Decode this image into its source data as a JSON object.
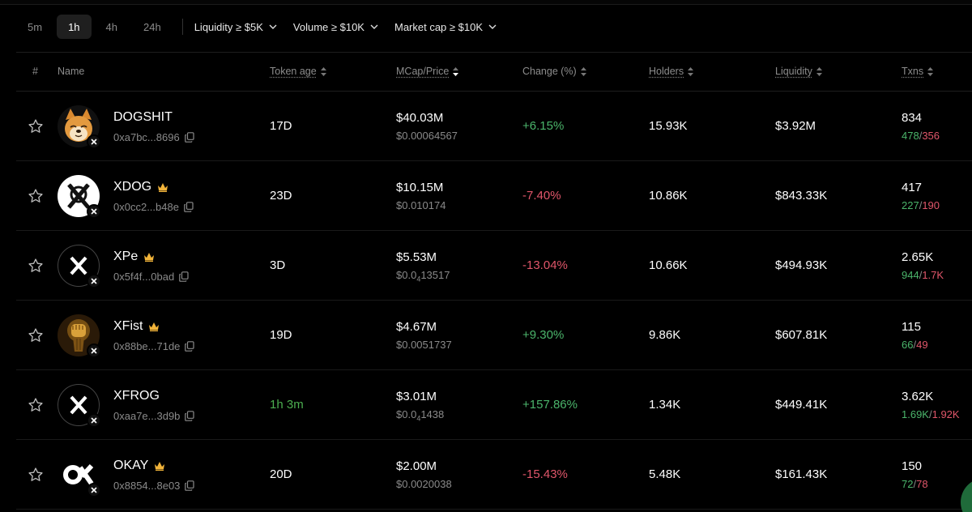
{
  "timeframes": [
    {
      "label": "5m",
      "active": false
    },
    {
      "label": "1h",
      "active": true
    },
    {
      "label": "4h",
      "active": false
    },
    {
      "label": "24h",
      "active": false
    }
  ],
  "filters": {
    "liquidity": "Liquidity ≥ $5K",
    "volume": "Volume ≥ $10K",
    "market_cap": "Market cap ≥ $10K"
  },
  "columns": {
    "index": "#",
    "name": "Name",
    "token_age": "Token age",
    "mcap_price": "MCap/Price",
    "change": "Change (%)",
    "holders": "Holders",
    "liquidity": "Liquidity",
    "txns": "Txns"
  },
  "colors": {
    "positive": "#4bb56b",
    "negative": "#e0566a",
    "muted": "#8a8a8a"
  },
  "rows": [
    {
      "name": "DOGSHIT",
      "address": "0xa7bc...8696",
      "crown": false,
      "icon": "doge-avatar-icon",
      "age": "17D",
      "age_new": false,
      "mcap": "$40.03M",
      "price": "$0.00064567",
      "change": "+6.15%",
      "change_dir": "pos",
      "holders": "15.93K",
      "liquidity": "$3.92M",
      "txns": "834",
      "buys": "478",
      "sells": "356"
    },
    {
      "name": "XDOG",
      "address": "0x0cc2...b48e",
      "crown": true,
      "icon": "xdog-avatar-icon",
      "age": "23D",
      "age_new": false,
      "mcap": "$10.15M",
      "price": "$0.010174",
      "change": "-7.40%",
      "change_dir": "neg",
      "holders": "10.86K",
      "liquidity": "$843.33K",
      "txns": "417",
      "buys": "227",
      "sells": "190"
    },
    {
      "name": "XPe",
      "address": "0x5f4f...0bad",
      "crown": true,
      "icon": "x-logo-avatar-icon",
      "age": "3D",
      "age_new": false,
      "mcap": "$5.53M",
      "price_pre": "$0.0",
      "price_sub": "4",
      "price_post": "13517",
      "change": "-13.04%",
      "change_dir": "neg",
      "holders": "10.66K",
      "liquidity": "$494.93K",
      "txns": "2.65K",
      "buys": "944",
      "sells": "1.7K"
    },
    {
      "name": "XFist",
      "address": "0x88be...71de",
      "crown": true,
      "icon": "fist-avatar-icon",
      "age": "19D",
      "age_new": false,
      "mcap": "$4.67M",
      "price": "$0.0051737",
      "change": "+9.30%",
      "change_dir": "pos",
      "holders": "9.86K",
      "liquidity": "$607.81K",
      "txns": "115",
      "buys": "66",
      "sells": "49"
    },
    {
      "name": "XFROG",
      "address": "0xaa7e...3d9b",
      "crown": false,
      "icon": "x-logo-avatar-icon",
      "age": "1h 3m",
      "age_new": true,
      "mcap": "$3.01M",
      "price_pre": "$0.0",
      "price_sub": "4",
      "price_post": "1438",
      "change": "+157.86%",
      "change_dir": "pos",
      "holders": "1.34K",
      "liquidity": "$449.41K",
      "txns": "3.62K",
      "buys": "1.69K",
      "sells": "1.92K"
    },
    {
      "name": "OKAY",
      "address": "0x8854...8e03",
      "crown": true,
      "icon": "okx-avatar-icon",
      "age": "20D",
      "age_new": false,
      "mcap": "$2.00M",
      "price": "$0.0020038",
      "change": "-15.43%",
      "change_dir": "neg",
      "holders": "5.48K",
      "liquidity": "$161.43K",
      "txns": "150",
      "buys": "72",
      "sells": "78"
    }
  ]
}
